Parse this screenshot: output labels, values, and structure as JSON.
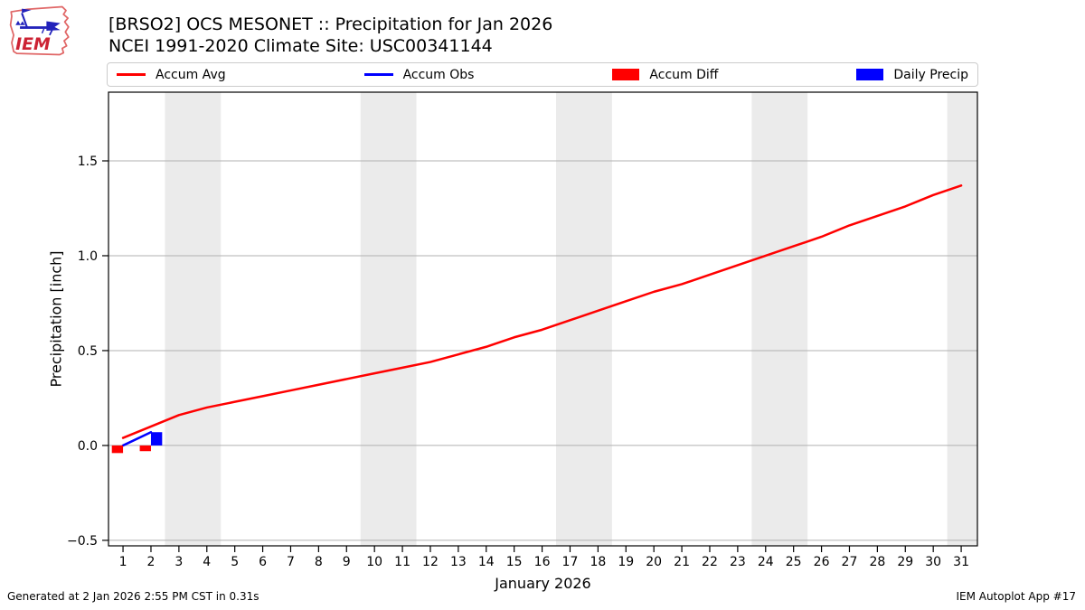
{
  "header": {
    "logo_text": "IEM"
  },
  "footer": {
    "left": "Generated at 2 Jan 2026 2:55 PM CST in 0.31s",
    "right": "IEM Autoplot App #17"
  },
  "legend": {
    "items": [
      {
        "label": "Accum Avg",
        "swatch": "line",
        "color": "#ff0000"
      },
      {
        "label": "Accum Obs",
        "swatch": "line",
        "color": "#0000ff"
      },
      {
        "label": "Accum Diff",
        "swatch": "rect",
        "color": "#ff0000"
      },
      {
        "label": "Daily Precip",
        "swatch": "rect",
        "color": "#0000ff"
      }
    ]
  },
  "chart_data": {
    "type": "line+bar",
    "title": "[BRSO2] OCS MESONET :: Precipitation for Jan 2026",
    "subtitle": "NCEI 1991-2020 Climate Site: USC00341144",
    "xlabel": "January 2026",
    "ylabel": "Precipitation [inch]",
    "xlim": [
      0.48,
      31.58
    ],
    "ylim": [
      -0.529,
      1.862
    ],
    "xticks": [
      1,
      2,
      3,
      4,
      5,
      6,
      7,
      8,
      9,
      10,
      11,
      12,
      13,
      14,
      15,
      16,
      17,
      18,
      19,
      20,
      21,
      22,
      23,
      24,
      25,
      26,
      27,
      28,
      29,
      30,
      31
    ],
    "yticks": [
      -0.5,
      0.0,
      0.5,
      1.0,
      1.5
    ],
    "ytick_labels": [
      "−0.5",
      "0.0",
      "0.5",
      "1.0",
      "1.5"
    ],
    "grid": "horizontal-only",
    "grid_color": "#b0b0b0",
    "band_color": "#ebebeb",
    "legend_position": "top-expanded",
    "weekend_bands": [
      [
        2.5,
        4.5
      ],
      [
        9.5,
        11.5
      ],
      [
        16.5,
        18.5
      ],
      [
        23.5,
        25.5
      ],
      [
        30.5,
        31.58
      ]
    ],
    "series": [
      {
        "name": "Accum Avg",
        "type": "line",
        "color": "#ff0000",
        "linewidth": 2.5,
        "x": [
          1,
          2,
          3,
          4,
          5,
          6,
          7,
          8,
          9,
          10,
          11,
          12,
          13,
          14,
          15,
          16,
          17,
          18,
          19,
          20,
          21,
          22,
          23,
          24,
          25,
          26,
          27,
          28,
          29,
          30,
          31
        ],
        "y": [
          0.04,
          0.1,
          0.16,
          0.2,
          0.23,
          0.26,
          0.29,
          0.32,
          0.35,
          0.38,
          0.41,
          0.44,
          0.48,
          0.52,
          0.57,
          0.61,
          0.66,
          0.71,
          0.76,
          0.81,
          0.85,
          0.9,
          0.95,
          1.0,
          1.05,
          1.1,
          1.16,
          1.21,
          1.26,
          1.32,
          1.37
        ]
      },
      {
        "name": "Accum Obs",
        "type": "line",
        "color": "#0000ff",
        "linewidth": 2.5,
        "x": [
          1,
          2
        ],
        "y": [
          0.0,
          0.07
        ]
      },
      {
        "name": "Accum Diff",
        "type": "bar",
        "color": "#ff0000",
        "bar_offset": -0.2,
        "bar_width": 0.4,
        "x": [
          1,
          2
        ],
        "y": [
          -0.04,
          -0.03
        ]
      },
      {
        "name": "Daily Precip",
        "type": "bar",
        "color": "#0000ff",
        "bar_offset": 0.2,
        "bar_width": 0.4,
        "x": [
          2
        ],
        "y": [
          0.07
        ]
      }
    ]
  }
}
